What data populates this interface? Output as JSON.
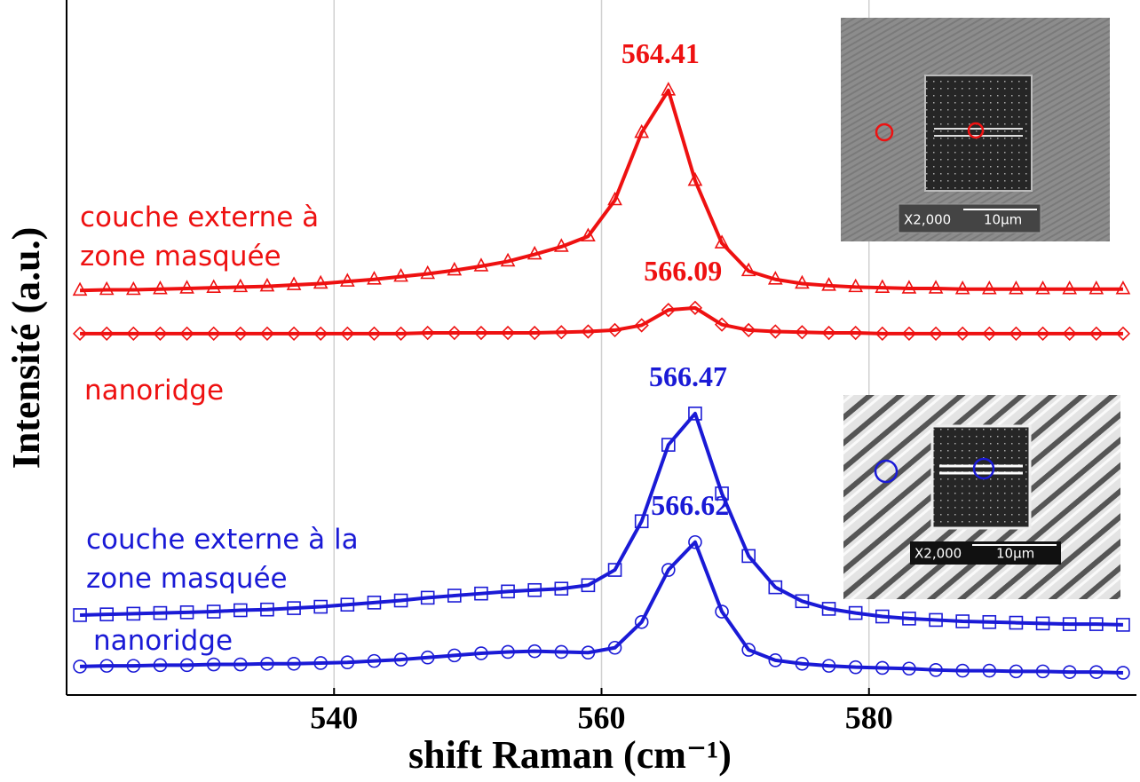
{
  "chart_data": {
    "type": "line",
    "xlabel": "shift  Raman (cm⁻¹)",
    "ylabel": "Intensité (a.u.)",
    "xlim": [
      520,
      600
    ],
    "xticks": [
      540,
      560,
      580
    ],
    "ylim": [
      0,
      100
    ],
    "grid": true,
    "x": [
      521,
      523,
      525,
      527,
      529,
      531,
      533,
      535,
      537,
      539,
      541,
      543,
      545,
      547,
      549,
      551,
      553,
      555,
      557,
      559,
      561,
      563,
      565,
      567,
      569,
      571,
      573,
      575,
      577,
      579,
      581,
      583,
      585,
      587,
      589,
      591,
      593,
      595,
      597,
      599
    ],
    "series": [
      {
        "name": "couche externe à zone masquée",
        "color": "#ee1111",
        "marker": "triangle",
        "peak_x": 564.41,
        "values": [
          58.2,
          58.3,
          58.3,
          58.4,
          58.5,
          58.6,
          58.7,
          58.8,
          59.0,
          59.2,
          59.5,
          59.8,
          60.2,
          60.6,
          61.1,
          61.7,
          62.4,
          63.4,
          64.5,
          66.0,
          71.2,
          80.9,
          87.0,
          74.0,
          65.0,
          61.0,
          59.8,
          59.2,
          58.9,
          58.7,
          58.6,
          58.5,
          58.5,
          58.4,
          58.4,
          58.4,
          58.4,
          58.4,
          58.4,
          58.4
        ]
      },
      {
        "name": "nanoridge",
        "color": "#ee1111",
        "marker": "diamond",
        "peak_x": 566.09,
        "values": [
          52.0,
          52.0,
          52.0,
          52.0,
          52.0,
          52.0,
          52.0,
          52.0,
          52.0,
          52.0,
          52.0,
          52.0,
          52.0,
          52.1,
          52.1,
          52.1,
          52.1,
          52.1,
          52.2,
          52.3,
          52.5,
          53.2,
          55.4,
          55.7,
          53.3,
          52.5,
          52.3,
          52.2,
          52.1,
          52.1,
          52.0,
          52.0,
          52.0,
          52.0,
          52.0,
          52.0,
          52.0,
          52.0,
          52.0,
          52.0
        ]
      },
      {
        "name": "couche externe à la zone masquée",
        "color": "#1a1ad6",
        "marker": "square",
        "peak_x": 566.47,
        "values": [
          11.5,
          11.6,
          11.7,
          11.8,
          11.9,
          12.0,
          12.2,
          12.3,
          12.5,
          12.7,
          13.0,
          13.3,
          13.6,
          14.0,
          14.3,
          14.6,
          14.9,
          15.1,
          15.3,
          15.8,
          18.0,
          25.0,
          36.0,
          40.5,
          29.0,
          20.0,
          15.5,
          13.5,
          12.4,
          11.8,
          11.3,
          11.0,
          10.8,
          10.6,
          10.5,
          10.4,
          10.3,
          10.2,
          10.2,
          10.1
        ]
      },
      {
        "name": "nanoridge",
        "color": "#1a1ad6",
        "marker": "circle",
        "peak_x": 566.62,
        "values": [
          4.1,
          4.2,
          4.2,
          4.3,
          4.3,
          4.4,
          4.4,
          4.5,
          4.5,
          4.6,
          4.7,
          4.9,
          5.1,
          5.4,
          5.7,
          6.0,
          6.2,
          6.3,
          6.2,
          6.1,
          6.8,
          10.5,
          18.0,
          22.0,
          12.0,
          6.5,
          5.0,
          4.5,
          4.2,
          4.0,
          3.9,
          3.8,
          3.6,
          3.5,
          3.5,
          3.4,
          3.4,
          3.3,
          3.3,
          3.2
        ]
      }
    ],
    "insets": [
      {
        "magnification": "X2,000",
        "scale": "10μm"
      },
      {
        "magnification": "X2,000",
        "scale": "10μm"
      }
    ]
  }
}
